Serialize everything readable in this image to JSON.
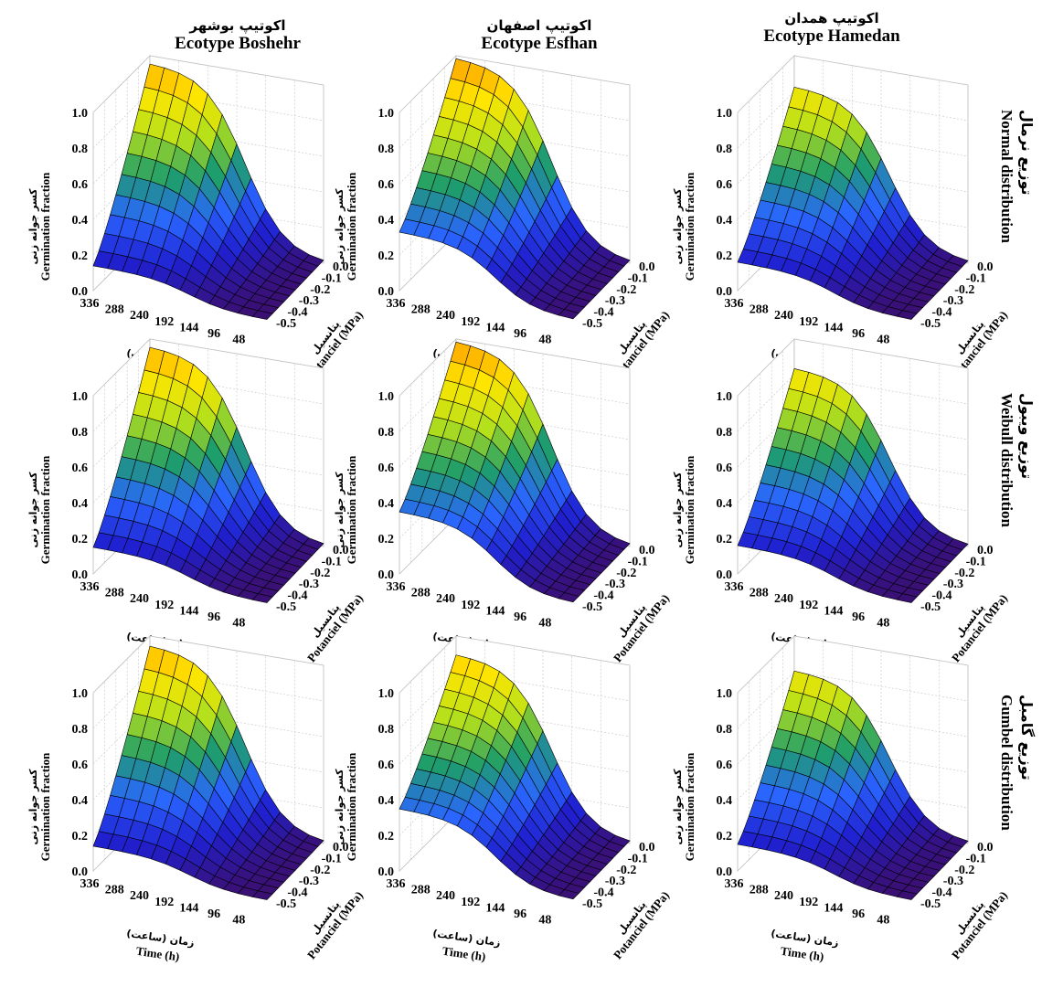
{
  "chart_data": {
    "type": "surface",
    "title": "",
    "columns": [
      {
        "title_fa": "اکوتیپ بوشهر",
        "title_en": "Ecotype Boshehr"
      },
      {
        "title_fa": "اکوتیپ اصفهان",
        "title_en": "Ecotype Esfhan"
      },
      {
        "title_fa": "اکوتیپ همدان",
        "title_en": "Ecotype Hamedan"
      }
    ],
    "rows": [
      {
        "label_fa": "توزیع نرمال",
        "label_en": "Normal distribution"
      },
      {
        "label_fa": "توزیع ویبول",
        "label_en": "Weibull distribution"
      },
      {
        "label_fa": "توزیع گامبل",
        "label_en": "Gumbel distribution"
      }
    ],
    "axes": {
      "x_label_fa": "زمان (ساعت)",
      "x_label_en": "Time (h)",
      "x_ticks": [
        "336",
        "288",
        "240",
        "192",
        "144",
        "96",
        "48"
      ],
      "y_label_fa": "پتانسیل",
      "y_label_en": "Potanciel (MPa)",
      "y_ticks": [
        "0.0",
        "-0.1",
        "-0.2",
        "-0.3",
        "-0.4",
        "-0.5"
      ],
      "z_label_fa": "کسر جوانه زنی",
      "z_label_en": "Germination fraction",
      "z_ticks": [
        "0.0",
        "0.2",
        "0.4",
        "0.6",
        "0.8",
        "1.0"
      ],
      "zlim": [
        0,
        1.0
      ],
      "x_range_hours": [
        0,
        336
      ],
      "y_range_mpa": [
        -0.5,
        0.0
      ]
    },
    "panels": [
      {
        "row": 0,
        "col": 0,
        "max_fraction": 0.96,
        "fraction_at_minus_0_5": 0.14,
        "fraction_at_48h": 0.05
      },
      {
        "row": 0,
        "col": 1,
        "max_fraction": 0.99,
        "fraction_at_minus_0_5": 0.33,
        "fraction_at_48h": 0.08
      },
      {
        "row": 0,
        "col": 2,
        "max_fraction": 0.83,
        "fraction_at_minus_0_5": 0.16,
        "fraction_at_48h": 0.04
      },
      {
        "row": 1,
        "col": 0,
        "max_fraction": 0.96,
        "fraction_at_minus_0_5": 0.15,
        "fraction_at_48h": 0.05
      },
      {
        "row": 1,
        "col": 1,
        "max_fraction": 0.99,
        "fraction_at_minus_0_5": 0.35,
        "fraction_at_48h": 0.08
      },
      {
        "row": 1,
        "col": 2,
        "max_fraction": 0.84,
        "fraction_at_minus_0_5": 0.16,
        "fraction_at_48h": 0.04
      },
      {
        "row": 2,
        "col": 0,
        "max_fraction": 0.95,
        "fraction_at_minus_0_5": 0.14,
        "fraction_at_48h": 0.05
      },
      {
        "row": 2,
        "col": 1,
        "max_fraction": 0.9,
        "fraction_at_minus_0_5": 0.35,
        "fraction_at_48h": 0.08
      },
      {
        "row": 2,
        "col": 2,
        "max_fraction": 0.81,
        "fraction_at_minus_0_5": 0.15,
        "fraction_at_48h": 0.04
      }
    ],
    "colormap": [
      "#3b0f70",
      "#2020d0",
      "#2a66ff",
      "#1e9e6a",
      "#b7e11a",
      "#ffe600",
      "#ff9a00"
    ],
    "grid": true,
    "legend": "none"
  }
}
